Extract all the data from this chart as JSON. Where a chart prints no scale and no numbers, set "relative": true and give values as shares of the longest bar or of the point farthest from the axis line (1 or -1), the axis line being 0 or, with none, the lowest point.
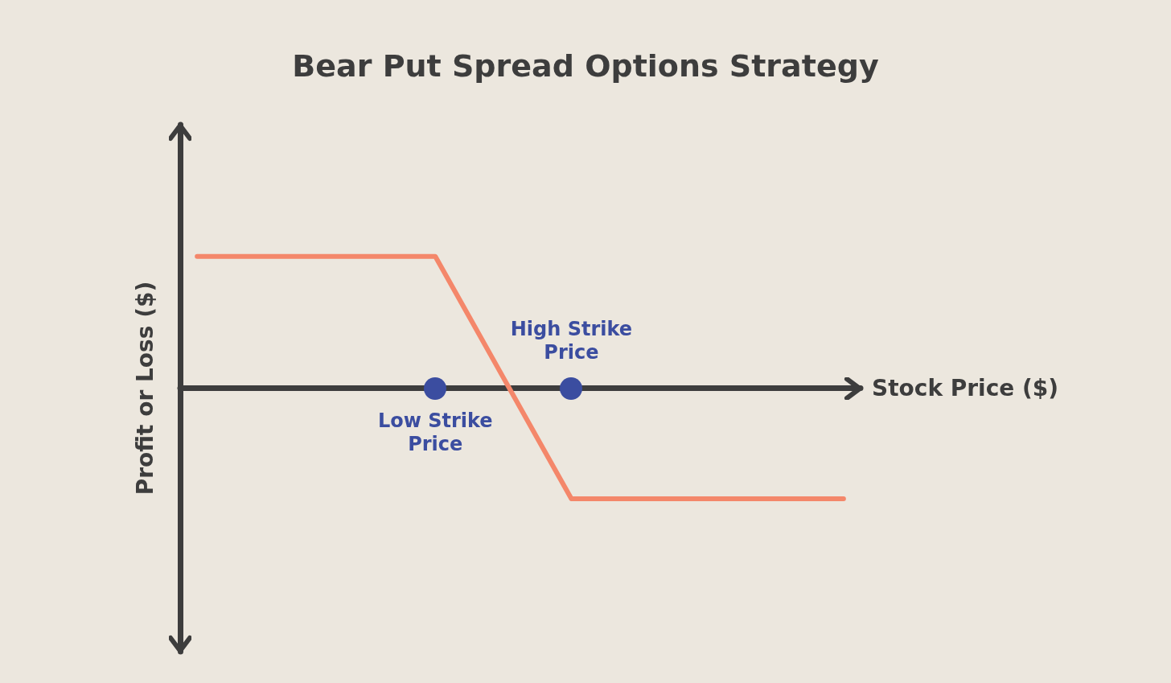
{
  "chart_data": {
    "type": "line",
    "title": "Bear Put Spread Options Strategy",
    "xlabel": "Stock Price ($)",
    "ylabel": "Profit or Loss ($)",
    "relative": true,
    "categories": [
      null,
      null,
      null,
      null,
      null,
      null,
      null,
      null,
      null,
      null,
      null,
      null,
      null,
      null,
      null,
      null,
      null,
      null,
      null,
      null
    ],
    "annotations": [
      "Low Strike Price",
      "High Strike Price"
    ],
    "series": [
      {
        "color": "#f4876a",
        "marker": "none",
        "values": [
          1,
          1,
          1,
          1,
          1,
          1,
          1,
          1,
          0.54,
          0.08,
          -0.38,
          -0.84,
          -0.84,
          -0.84,
          -0.84,
          -0.84,
          -0.84,
          -0.84,
          -0.84,
          -0.84
        ]
      }
    ]
  }
}
